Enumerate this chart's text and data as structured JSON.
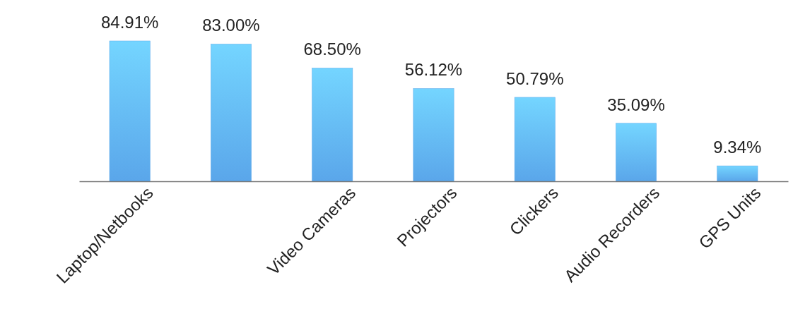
{
  "chart_data": {
    "type": "bar",
    "categories": [
      "Laptop/Netbooks",
      null,
      "Video Cameras",
      "Projectors",
      "Clickers",
      "Audio Recorders",
      "GPS Units"
    ],
    "values": [
      84.91,
      83.0,
      68.5,
      56.12,
      50.79,
      35.09,
      9.34
    ],
    "value_labels": [
      "84.91%",
      "83.00%",
      "68.50%",
      "56.12%",
      "50.79%",
      "35.09%",
      "9.34%"
    ],
    "color": "#5aa6ea"
  }
}
